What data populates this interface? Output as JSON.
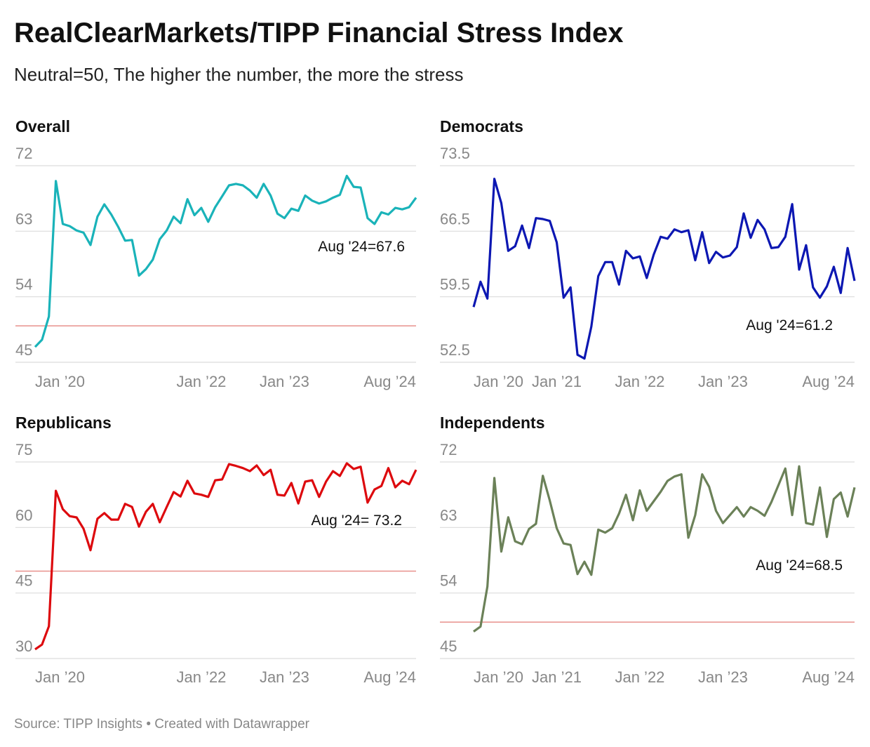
{
  "title": "RealClearMarkets/TIPP Financial Stress Index",
  "subtitle": "Neutral=50, The higher the number, the more the stress",
  "source": "Source: TIPP Insights • Created with Datawrapper",
  "chart_data": [
    {
      "type": "line",
      "title": "Overall",
      "color": "#1ab3b9",
      "categories": [
        "Jan ’20",
        null,
        null,
        null,
        null,
        null,
        null,
        null,
        null,
        null,
        null,
        null,
        null,
        null,
        null,
        null,
        null,
        null,
        null,
        null,
        null,
        null,
        null,
        null,
        "Jan ’22",
        null,
        null,
        null,
        null,
        null,
        null,
        null,
        null,
        null,
        null,
        null,
        "Jan ’23",
        null,
        null,
        null,
        null,
        null,
        null,
        null,
        null,
        null,
        null,
        null,
        null,
        null,
        null,
        null,
        null,
        null,
        null,
        "Aug ’24"
      ],
      "values": [
        47.1,
        48.1,
        51.3,
        69.9,
        64.0,
        63.7,
        63.1,
        62.8,
        61.1,
        65.0,
        66.7,
        65.3,
        63.6,
        61.7,
        61.8,
        56.9,
        57.8,
        59.1,
        61.9,
        63.1,
        65.0,
        64.1,
        67.4,
        65.2,
        66.2,
        64.3,
        66.3,
        67.8,
        69.3,
        69.5,
        69.3,
        68.6,
        67.6,
        69.5,
        67.9,
        65.4,
        64.8,
        66.1,
        65.8,
        67.9,
        67.2,
        66.8,
        67.1,
        67.6,
        68.0,
        70.6,
        69.1,
        69.0,
        64.8,
        64.0,
        65.6,
        65.3,
        66.2,
        66.0,
        66.3,
        67.6
      ],
      "ylim": [
        45,
        72
      ],
      "yticks": [
        45,
        54,
        63,
        72
      ],
      "ref_line": 50,
      "ref_color": "#e8908c",
      "annotation": "Aug '24=67.6"
    },
    {
      "type": "line",
      "title": "Democrats",
      "color": "#0c17b2",
      "categories": [
        "Jan ’20",
        null,
        null,
        null,
        null,
        null,
        null,
        null,
        null,
        null,
        null,
        null,
        "Jan ’21",
        null,
        null,
        null,
        null,
        null,
        null,
        null,
        null,
        null,
        null,
        null,
        "Jan ’22",
        null,
        null,
        null,
        null,
        null,
        null,
        null,
        null,
        null,
        null,
        null,
        "Jan ’23",
        null,
        null,
        null,
        null,
        null,
        null,
        null,
        null,
        null,
        null,
        null,
        null,
        null,
        null,
        null,
        null,
        null,
        null,
        "Aug ’24"
      ],
      "values": [
        58.4,
        61.1,
        59.3,
        72.1,
        69.5,
        64.4,
        64.9,
        67.1,
        64.7,
        67.9,
        67.8,
        67.6,
        65.3,
        59.4,
        60.5,
        53.3,
        52.9,
        56.3,
        61.7,
        63.2,
        63.2,
        60.8,
        64.4,
        63.6,
        63.8,
        61.5,
        64.0,
        65.9,
        65.7,
        66.7,
        66.4,
        66.6,
        63.4,
        66.4,
        63.1,
        64.3,
        63.7,
        63.9,
        64.8,
        68.4,
        65.8,
        67.7,
        66.7,
        64.7,
        64.8,
        65.9,
        69.4,
        62.4,
        65.0,
        60.5,
        59.4,
        60.6,
        62.7,
        59.9,
        64.7,
        61.2
      ],
      "ylim": [
        52.5,
        73.5
      ],
      "yticks": [
        52.5,
        59.5,
        66.5,
        73.5
      ],
      "annotation": "Aug '24=61.2"
    },
    {
      "type": "line",
      "title": "Republicans",
      "color": "#dd0a0e",
      "categories": [
        "Jan ’20",
        null,
        null,
        null,
        null,
        null,
        null,
        null,
        null,
        null,
        null,
        null,
        null,
        null,
        null,
        null,
        null,
        null,
        null,
        null,
        null,
        null,
        null,
        null,
        "Jan ’22",
        null,
        null,
        null,
        null,
        null,
        null,
        null,
        null,
        null,
        null,
        null,
        "Jan ’23",
        null,
        null,
        null,
        null,
        null,
        null,
        null,
        null,
        null,
        null,
        null,
        null,
        null,
        null,
        null,
        null,
        null,
        null,
        "Aug ’24"
      ],
      "values": [
        32.1,
        33.2,
        37.4,
        68.4,
        64.2,
        62.6,
        62.3,
        59.7,
        54.8,
        62.0,
        63.3,
        61.8,
        61.8,
        65.4,
        64.7,
        60.2,
        63.6,
        65.4,
        61.2,
        64.7,
        68.1,
        67.1,
        70.7,
        67.8,
        67.5,
        67.0,
        70.8,
        71.0,
        74.5,
        74.1,
        73.6,
        72.9,
        74.2,
        72.0,
        73.2,
        67.5,
        67.3,
        70.2,
        65.5,
        70.5,
        70.8,
        67.0,
        70.5,
        72.9,
        71.8,
        74.7,
        73.4,
        73.9,
        65.7,
        68.7,
        69.5,
        73.6,
        69.2,
        70.7,
        69.9,
        73.2
      ],
      "ylim": [
        30,
        75
      ],
      "yticks": [
        30,
        45,
        60,
        75
      ],
      "ref_line": 50,
      "ref_color": "#e8908c",
      "annotation": "Aug '24= 73.2"
    },
    {
      "type": "line",
      "title": "Independents",
      "color": "#6b8158",
      "categories": [
        "Jan ’20",
        null,
        null,
        null,
        null,
        null,
        null,
        null,
        null,
        null,
        null,
        null,
        "Jan ’21",
        null,
        null,
        null,
        null,
        null,
        null,
        null,
        null,
        null,
        null,
        null,
        "Jan ’22",
        null,
        null,
        null,
        null,
        null,
        null,
        null,
        null,
        null,
        null,
        null,
        "Jan ’23",
        null,
        null,
        null,
        null,
        null,
        null,
        null,
        null,
        null,
        null,
        null,
        null,
        null,
        null,
        null,
        null,
        null,
        null,
        "Aug ’24"
      ],
      "values": [
        48.7,
        49.4,
        54.9,
        69.8,
        59.7,
        64.4,
        61.1,
        60.7,
        62.8,
        63.5,
        70.1,
        66.7,
        62.9,
        60.8,
        60.6,
        56.6,
        58.3,
        56.5,
        62.7,
        62.3,
        62.9,
        64.9,
        67.5,
        64.0,
        68.1,
        65.3,
        66.6,
        67.9,
        69.4,
        70.0,
        70.3,
        61.6,
        64.7,
        70.3,
        68.6,
        65.3,
        63.6,
        64.7,
        65.8,
        64.5,
        65.8,
        65.3,
        64.6,
        66.5,
        68.8,
        71.1,
        64.7,
        71.4,
        63.6,
        63.4,
        68.5,
        61.7,
        66.9,
        67.8,
        64.5,
        68.5
      ],
      "ylim": [
        45,
        72
      ],
      "yticks": [
        45,
        54,
        63,
        72
      ],
      "ref_line": 50,
      "ref_color": "#e8908c",
      "annotation": "Aug '24=68.5"
    }
  ]
}
